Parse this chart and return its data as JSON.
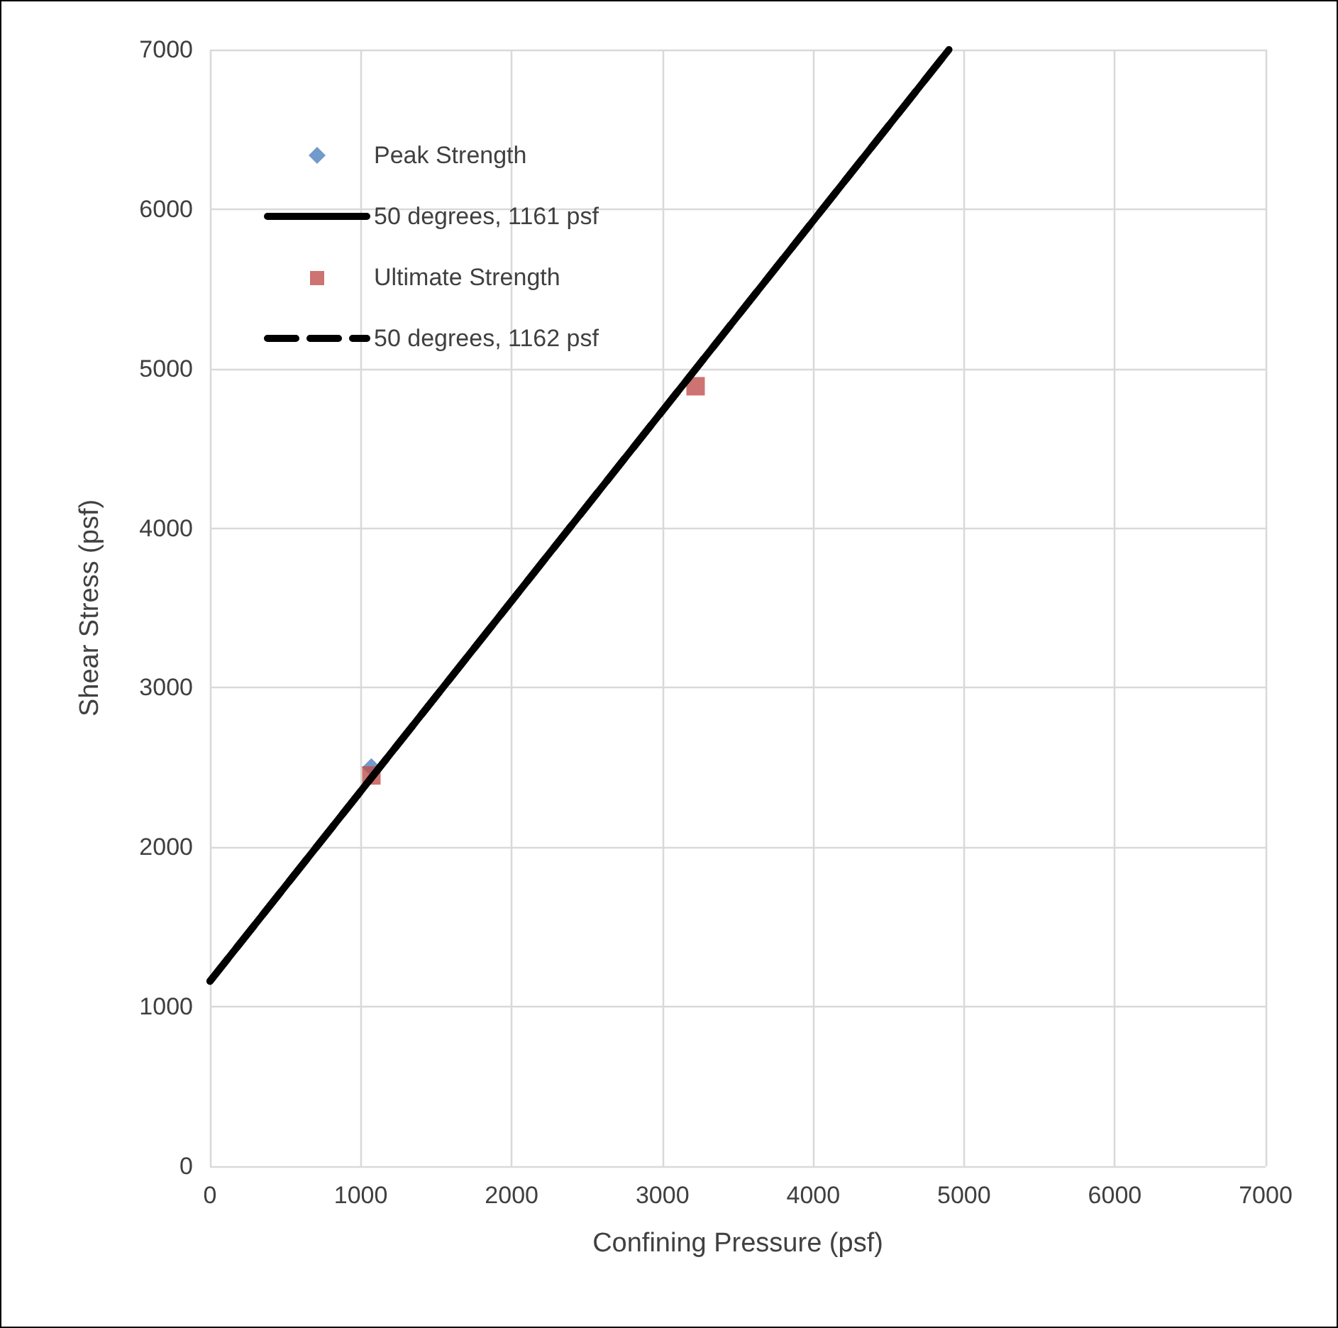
{
  "chart_data": {
    "type": "scatter",
    "xlabel": "Confining Pressure (psf)",
    "ylabel": "Shear Stress (psf)",
    "xlim": [
      0,
      7000
    ],
    "xticks": [
      0,
      1000,
      2000,
      3000,
      4000,
      5000,
      6000,
      7000
    ],
    "ylim": [
      0,
      7000
    ],
    "yticks": [
      0,
      1000,
      2000,
      3000,
      4000,
      5000,
      6000,
      7000
    ],
    "grid": true,
    "legend": "top left",
    "series": [
      {
        "name": "Peak Strength",
        "marker": "diamond",
        "color": "#4f81bd",
        "x": [
          1070
        ],
        "values": [
          2500
        ]
      },
      {
        "name": "50 degrees, 1161 psf",
        "type": "line",
        "line_style": "solid",
        "marker": "none",
        "color": "#000000",
        "x": [
          0,
          4900
        ],
        "values": [
          1160,
          7000
        ]
      },
      {
        "name": "Ultimate Strength",
        "marker": "square",
        "color": "#c0504d",
        "x": [
          1070,
          3220
        ],
        "values": [
          2450,
          4890
        ]
      },
      {
        "name": "50 degrees, 1162 psf",
        "type": "line",
        "line_style": "dashed",
        "marker": "none",
        "color": "#000000",
        "x": [
          0,
          4900
        ],
        "values": [
          1160,
          7000
        ]
      }
    ]
  }
}
